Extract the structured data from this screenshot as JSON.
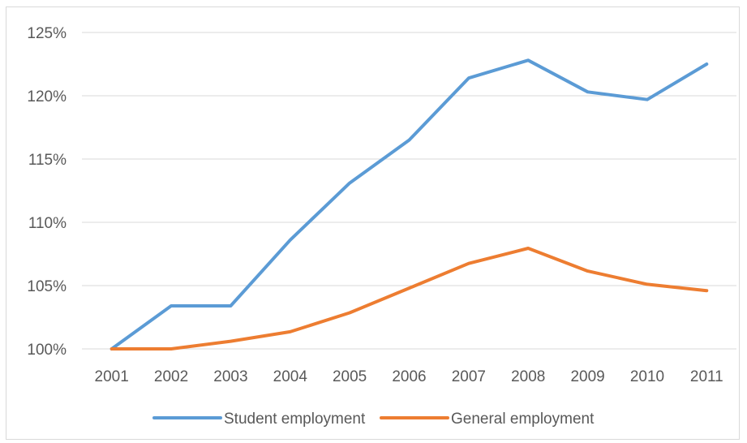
{
  "chart_data": {
    "type": "line",
    "title": "",
    "xlabel": "",
    "ylabel": "",
    "categories": [
      "2001",
      "2002",
      "2003",
      "2004",
      "2005",
      "2006",
      "2007",
      "2008",
      "2009",
      "2010",
      "2011"
    ],
    "ylim": [
      100,
      125
    ],
    "yticks": [
      100,
      105,
      110,
      115,
      120,
      125
    ],
    "ytick_labels": [
      "100%",
      "105%",
      "110%",
      "115%",
      "120%",
      "125%"
    ],
    "grid": true,
    "legend_position": "bottom",
    "series": [
      {
        "name": "Student employment",
        "color": "#5b9bd5",
        "values": [
          100.0,
          103.4,
          103.4,
          108.6,
          113.1,
          116.5,
          121.4,
          122.8,
          120.3,
          119.7,
          122.5
        ]
      },
      {
        "name": "General employment",
        "color": "#ed7d31",
        "values": [
          100.0,
          100.0,
          100.6,
          101.35,
          102.85,
          104.8,
          106.75,
          107.95,
          106.15,
          105.1,
          104.6
        ]
      }
    ]
  }
}
